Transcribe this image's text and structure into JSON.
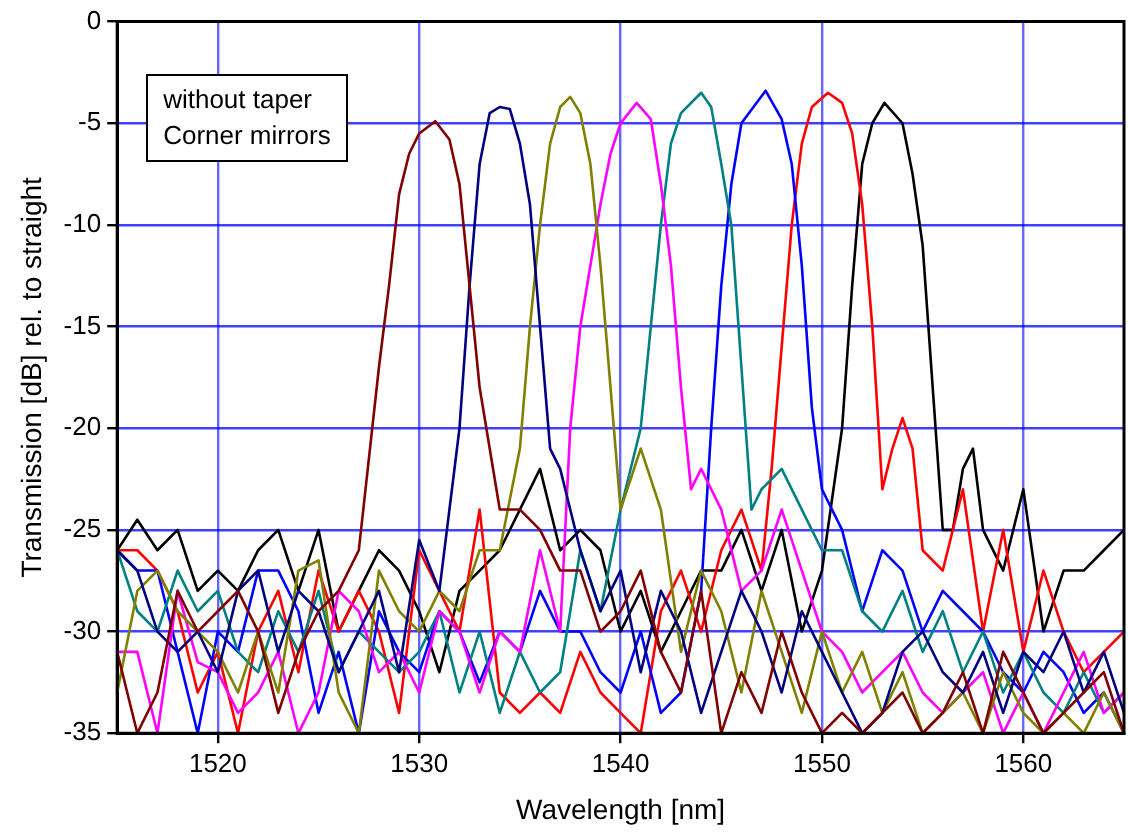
{
  "chart_data": {
    "type": "line",
    "xlabel": "Wavelength [nm]",
    "ylabel": "Transmission [dB] rel. to straight",
    "annotations": [
      "without taper",
      "Corner mirrors"
    ],
    "xlim": [
      1515,
      1565
    ],
    "xticks": [
      1520,
      1530,
      1540,
      1550,
      1560
    ],
    "ylim": [
      -35,
      0
    ],
    "yticks": [
      -35,
      -30,
      -25,
      -20,
      -15,
      -10,
      -5,
      0
    ],
    "grid": true,
    "legend": false,
    "marker": "none",
    "line_style": "solid",
    "series": [
      {
        "color": "#800000",
        "x": [
          1515,
          1516,
          1517,
          1518,
          1519,
          1520,
          1521,
          1522,
          1523,
          1524,
          1525,
          1526,
          1527,
          1528,
          1528.5,
          1529,
          1529.5,
          1530,
          1530.8,
          1531.5,
          1532,
          1532.5,
          1533,
          1534,
          1535,
          1536,
          1537,
          1538,
          1539,
          1540,
          1541,
          1542,
          1543,
          1544,
          1545,
          1546,
          1547,
          1548,
          1549,
          1550,
          1551,
          1552,
          1553,
          1554,
          1555,
          1556,
          1557,
          1558,
          1559,
          1560,
          1561,
          1562,
          1563,
          1564,
          1565
        ],
        "values": [
          -31,
          -35,
          -33,
          -28,
          -30,
          -29,
          -28,
          -30,
          -34,
          -31,
          -29,
          -28,
          -26,
          -17,
          -13,
          -8.5,
          -6.5,
          -5.5,
          -4.9,
          -5.8,
          -8,
          -13,
          -18,
          -24,
          -24,
          -25,
          -27,
          -27,
          -30,
          -29,
          -27,
          -31,
          -33,
          -28,
          -35,
          -32,
          -34,
          -30,
          -33,
          -35,
          -34,
          -35,
          -34,
          -33,
          -35,
          -34,
          -32,
          -35,
          -31,
          -33,
          -35,
          -34,
          -33,
          -32,
          -35
        ]
      },
      {
        "color": "#000080",
        "x": [
          1515,
          1516,
          1517,
          1518,
          1519,
          1520,
          1521,
          1522,
          1523,
          1524,
          1525,
          1526,
          1527,
          1528,
          1529,
          1530,
          1531,
          1532,
          1532.5,
          1533,
          1533.5,
          1534,
          1534.5,
          1535,
          1535.5,
          1536,
          1536.5,
          1537,
          1538,
          1539,
          1540,
          1541,
          1542,
          1543,
          1544,
          1545,
          1546,
          1547,
          1548,
          1549,
          1550,
          1551,
          1552,
          1553,
          1554,
          1555,
          1556,
          1557,
          1558,
          1559,
          1560,
          1561,
          1562,
          1563,
          1564,
          1565
        ],
        "values": [
          -26,
          -27,
          -30,
          -31,
          -30,
          -32,
          -28,
          -27,
          -31,
          -28,
          -29,
          -32,
          -30,
          -28,
          -32,
          -25.5,
          -28,
          -20,
          -13,
          -7,
          -4.5,
          -4.2,
          -4.3,
          -6,
          -9,
          -15,
          -21,
          -22,
          -26,
          -29,
          -27,
          -32,
          -28,
          -30,
          -34,
          -31,
          -28,
          -30,
          -33,
          -29,
          -31,
          -33,
          -35,
          -34,
          -31,
          -30,
          -32,
          -33,
          -31,
          -34,
          -31,
          -32,
          -30,
          -33,
          -31,
          -34
        ]
      },
      {
        "color": "#808000",
        "x": [
          1515,
          1516,
          1517,
          1518,
          1519,
          1520,
          1521,
          1522,
          1523,
          1524,
          1525,
          1526,
          1527,
          1528,
          1529,
          1530,
          1531,
          1532,
          1533,
          1534,
          1535,
          1535.5,
          1536,
          1536.5,
          1537,
          1537.5,
          1538,
          1538.5,
          1539,
          1539.5,
          1540,
          1541,
          1542,
          1543,
          1544,
          1545,
          1546,
          1547,
          1548,
          1549,
          1550,
          1551,
          1552,
          1553,
          1554,
          1555,
          1556,
          1557,
          1558,
          1559,
          1560,
          1561,
          1562,
          1563,
          1564,
          1565
        ],
        "values": [
          -33,
          -28,
          -27,
          -29,
          -30,
          -31,
          -33,
          -30,
          -33,
          -27,
          -26.5,
          -33,
          -35,
          -27,
          -29,
          -30,
          -28,
          -29,
          -26,
          -26,
          -21,
          -15,
          -10,
          -6,
          -4.2,
          -3.7,
          -4.5,
          -7,
          -12,
          -18,
          -24,
          -21,
          -24,
          -31,
          -27,
          -29,
          -33,
          -28,
          -31,
          -34,
          -30,
          -33,
          -31,
          -34,
          -32,
          -35,
          -34,
          -33,
          -35,
          -32,
          -34,
          -35,
          -34,
          -35,
          -33,
          -35
        ]
      },
      {
        "color": "#ff00ff",
        "x": [
          1515,
          1516,
          1517,
          1518,
          1519,
          1520,
          1521,
          1522,
          1523,
          1524,
          1525,
          1526,
          1527,
          1528,
          1529,
          1530,
          1531,
          1532,
          1533,
          1534,
          1535,
          1536,
          1537,
          1537.5,
          1538,
          1539,
          1539.5,
          1540,
          1540.8,
          1541.5,
          1542,
          1542.5,
          1543,
          1543.5,
          1544,
          1545,
          1546,
          1547,
          1548,
          1549,
          1550,
          1551,
          1552,
          1553,
          1554,
          1555,
          1556,
          1557,
          1558,
          1559,
          1560,
          1561,
          1562,
          1563,
          1564,
          1565
        ],
        "values": [
          -31,
          -31,
          -35,
          -28,
          -31.5,
          -32,
          -34,
          -33,
          -31,
          -35,
          -33,
          -28,
          -29,
          -32,
          -31,
          -33,
          -29,
          -30,
          -33,
          -30,
          -31,
          -26,
          -30,
          -20,
          -15,
          -9,
          -6.5,
          -5,
          -4,
          -4.8,
          -8,
          -12,
          -18,
          -23,
          -22,
          -24,
          -28,
          -27,
          -24,
          -27,
          -30,
          -31,
          -33,
          -32,
          -31,
          -33,
          -34,
          -33,
          -32,
          -35,
          -33,
          -35,
          -33,
          -31,
          -34,
          -33
        ]
      },
      {
        "color": "#008080",
        "x": [
          1515,
          1516,
          1517,
          1518,
          1519,
          1520,
          1521,
          1522,
          1523,
          1524,
          1525,
          1526,
          1527,
          1528,
          1529,
          1530,
          1531,
          1532,
          1533,
          1534,
          1535,
          1536,
          1537,
          1538,
          1539,
          1540,
          1541,
          1541.5,
          1542,
          1542.5,
          1543,
          1544,
          1544.5,
          1545,
          1545.5,
          1546,
          1546.5,
          1547,
          1548,
          1549,
          1550,
          1551,
          1552,
          1553,
          1554,
          1555,
          1556,
          1557,
          1558,
          1559,
          1560,
          1561,
          1562,
          1563,
          1564,
          1565
        ],
        "values": [
          -26,
          -29,
          -30,
          -27,
          -29,
          -28,
          -31,
          -32,
          -29,
          -31,
          -28,
          -32,
          -30,
          -31,
          -32,
          -31,
          -29,
          -33,
          -30,
          -34,
          -31,
          -33,
          -32,
          -26,
          -29,
          -24,
          -20,
          -15,
          -10,
          -6,
          -4.5,
          -3.5,
          -4.2,
          -7,
          -10,
          -17,
          -24,
          -23,
          -22,
          -24,
          -26,
          -26,
          -29,
          -30,
          -28,
          -31,
          -29,
          -32,
          -30,
          -33,
          -31,
          -33,
          -34,
          -32,
          -34,
          -33
        ]
      },
      {
        "color": "#0000ff",
        "x": [
          1515,
          1516,
          1517,
          1518,
          1519,
          1520,
          1521,
          1522,
          1523,
          1524,
          1525,
          1526,
          1527,
          1528,
          1529,
          1530,
          1531,
          1532,
          1533,
          1534,
          1535,
          1536,
          1537,
          1538,
          1539,
          1540,
          1541,
          1542,
          1543,
          1544,
          1544.5,
          1545,
          1545.5,
          1546,
          1547.2,
          1548,
          1548.5,
          1549,
          1549.5,
          1550,
          1551,
          1552,
          1553,
          1554,
          1555,
          1556,
          1557,
          1558,
          1559,
          1560,
          1561,
          1562,
          1563,
          1564,
          1565
        ],
        "values": [
          -26,
          -27,
          -27,
          -31,
          -35,
          -30,
          -31,
          -27,
          -27,
          -29,
          -34,
          -31,
          -35,
          -29,
          -31,
          -32,
          -29,
          -30,
          -32.5,
          -30,
          -31,
          -28,
          -30,
          -30,
          -32,
          -33,
          -30,
          -34,
          -33,
          -28,
          -20,
          -13,
          -8,
          -5,
          -3.4,
          -4.8,
          -7,
          -12,
          -19,
          -23,
          -25,
          -29,
          -26,
          -27,
          -30,
          -28,
          -29,
          -30,
          -32,
          -33,
          -31,
          -32,
          -34,
          -33,
          -35
        ]
      },
      {
        "color": "#ff0000",
        "x": [
          1515,
          1516,
          1517,
          1518,
          1519,
          1520,
          1521,
          1522,
          1523,
          1524,
          1525,
          1526,
          1527,
          1528,
          1529,
          1530,
          1531,
          1532,
          1533,
          1534,
          1535,
          1536,
          1537,
          1538,
          1539,
          1540,
          1541,
          1542,
          1543,
          1544,
          1545,
          1546,
          1547,
          1547.5,
          1548,
          1548.5,
          1549,
          1549.5,
          1550.3,
          1551,
          1551.5,
          1552,
          1552.5,
          1553,
          1553.5,
          1554,
          1554.5,
          1555,
          1556,
          1557,
          1558,
          1559,
          1560,
          1561,
          1562,
          1563,
          1564,
          1565
        ],
        "values": [
          -26,
          -26,
          -27,
          -29,
          -33,
          -31,
          -35,
          -30,
          -28,
          -32,
          -27,
          -30,
          -28,
          -30,
          -34,
          -26,
          -28,
          -30,
          -24,
          -33,
          -34,
          -33,
          -34,
          -31,
          -33,
          -34,
          -35,
          -29,
          -27,
          -30,
          -26,
          -24,
          -27,
          -22,
          -16,
          -10,
          -6,
          -4.2,
          -3.5,
          -4,
          -5.5,
          -9,
          -15,
          -23,
          -21,
          -19.5,
          -21,
          -26,
          -27,
          -23,
          -30,
          -25,
          -31,
          -27,
          -30,
          -32,
          -31,
          -30
        ]
      },
      {
        "color": "#000000",
        "x": [
          1515,
          1516,
          1517,
          1518,
          1519,
          1520,
          1521,
          1522,
          1523,
          1524,
          1525,
          1526,
          1527,
          1528,
          1529,
          1530,
          1531,
          1532,
          1533,
          1534,
          1535,
          1536,
          1537,
          1538,
          1539,
          1540,
          1541,
          1542,
          1543,
          1544,
          1545,
          1546,
          1547,
          1548,
          1549,
          1550,
          1551,
          1551.5,
          1552,
          1552.5,
          1553.1,
          1554,
          1554.5,
          1555,
          1555.5,
          1556,
          1556.5,
          1557,
          1557.5,
          1558,
          1559,
          1560,
          1561,
          1562,
          1563,
          1564,
          1565
        ],
        "values": [
          -26,
          -24.5,
          -26,
          -25,
          -28,
          -27,
          -28,
          -26,
          -25,
          -28,
          -25,
          -30,
          -28,
          -26,
          -27,
          -29,
          -32,
          -28,
          -27,
          -26,
          -24,
          -22,
          -26,
          -25,
          -26,
          -30,
          -28,
          -31,
          -29,
          -27,
          -27,
          -25,
          -28,
          -25,
          -30,
          -27,
          -20,
          -13,
          -7,
          -5,
          -4,
          -5,
          -7.5,
          -11,
          -18,
          -25,
          -25,
          -22,
          -21,
          -25,
          -27,
          -23,
          -30,
          -27,
          -27,
          -26,
          -25
        ]
      }
    ]
  }
}
